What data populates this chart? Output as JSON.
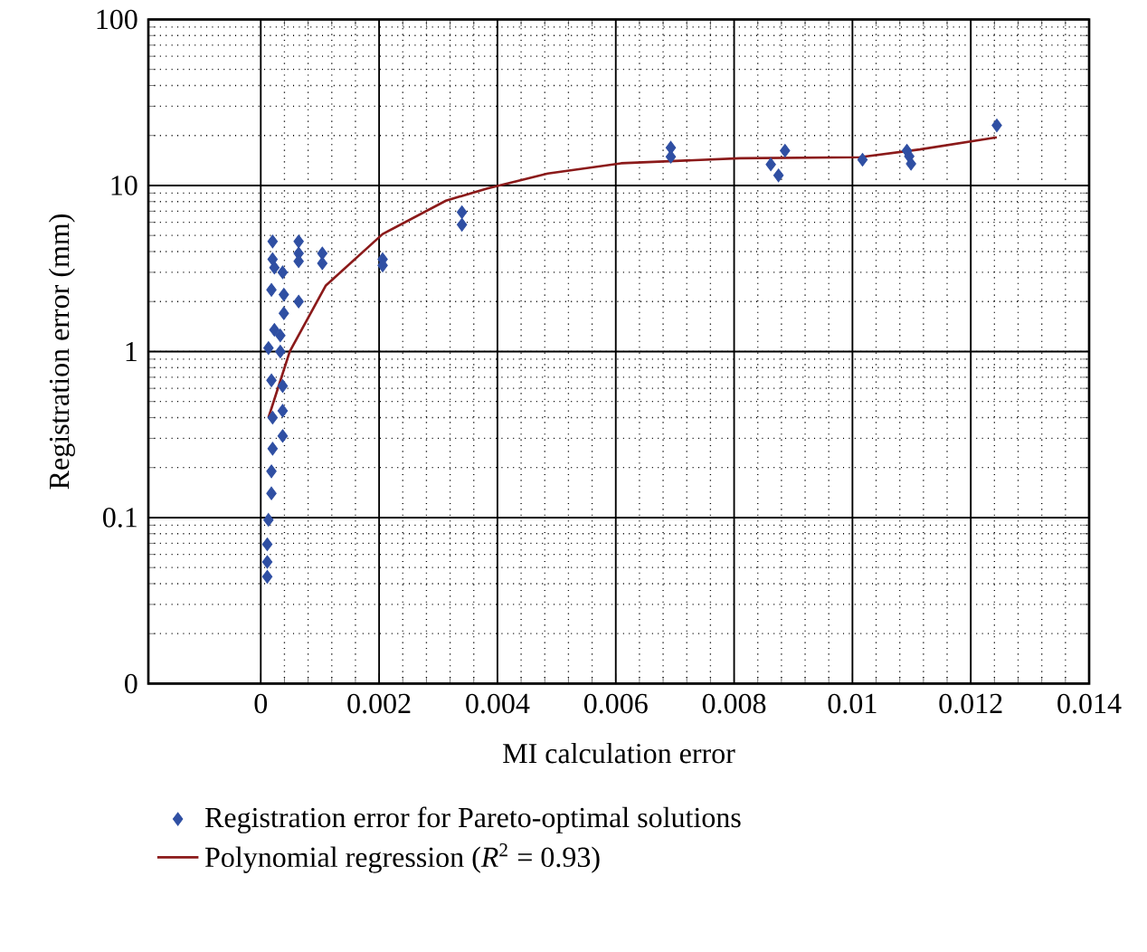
{
  "chart_data": {
    "type": "scatter",
    "xlabel": "MI calculation error",
    "ylabel": "Registration error (mm)",
    "log": "y",
    "grid": true,
    "legend": "bottom",
    "xlim": [
      -0.0019,
      0.014
    ],
    "ylim": [
      0.01,
      100
    ],
    "xticks": [
      0,
      0.002,
      0.004,
      0.006,
      0.008,
      0.01,
      0.012,
      0.014
    ],
    "yticks": [
      {
        "value": 0.01,
        "label": "0"
      },
      0.1,
      1,
      10,
      100
    ],
    "series": [
      {
        "name": "Registration error for Pareto-optimal solutions",
        "marker": "diamond",
        "color": "#2f4fa3",
        "x": [
          0.0002,
          0.0002,
          0.00023,
          0.00037,
          0.00018,
          0.00039,
          0.00039,
          0.00023,
          0.00033,
          0.00013,
          0.00033,
          0.00018,
          0.00037,
          0.00037,
          0.0002,
          0.00037,
          0.0002,
          0.00018,
          0.00018,
          0.00013,
          0.00011,
          0.00011,
          0.00011,
          0.00064,
          0.00064,
          0.00064,
          0.00064,
          0.00104,
          0.00104,
          0.00206,
          0.00206,
          0.0034,
          0.0034,
          0.00693,
          0.00693,
          0.00862,
          0.00875,
          0.00886,
          0.01017,
          0.01092,
          0.01096,
          0.01099,
          0.01244
        ],
        "values": [
          4.6,
          3.6,
          3.2,
          3.0,
          2.35,
          2.2,
          1.7,
          1.35,
          1.25,
          1.05,
          1.0,
          0.67,
          0.62,
          0.44,
          0.4,
          0.31,
          0.26,
          0.19,
          0.14,
          0.097,
          0.069,
          0.054,
          0.044,
          4.6,
          3.9,
          3.5,
          2.0,
          3.9,
          3.4,
          3.6,
          3.3,
          6.9,
          5.8,
          16.9,
          14.9,
          13.4,
          11.5,
          16.2,
          14.3,
          16.2,
          15,
          13.5,
          23
        ]
      },
      {
        "name": "Polynomial regression (*R*$^{2}$ = 0.93)",
        "type": "line",
        "marker": "none",
        "line_style": "solid",
        "color": "#8b1a1a",
        "x": [
          0.00013,
          0.00049,
          0.0011,
          0.00206,
          0.00313,
          0.00383,
          0.00485,
          0.00609,
          0.0081,
          0.01012,
          0.01114,
          0.01244
        ],
        "values": [
          0.4,
          1.0,
          2.5,
          5.1,
          8.1,
          9.6,
          11.8,
          13.6,
          14.6,
          14.8,
          16.5,
          19.5
        ]
      }
    ]
  }
}
